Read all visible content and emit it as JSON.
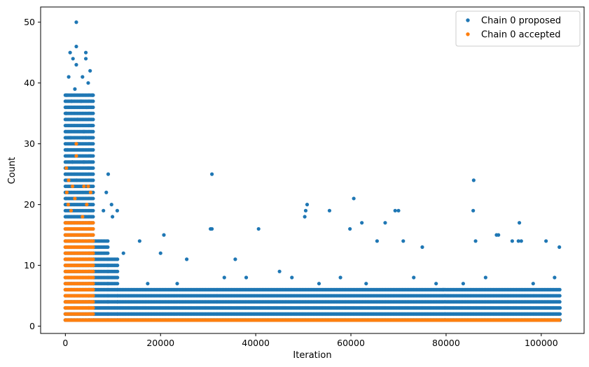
{
  "chart_data": {
    "type": "scatter",
    "title": "",
    "xlabel": "Iteration",
    "ylabel": "Count",
    "xlim": [
      -5200,
      109000
    ],
    "ylim": [
      -1.2,
      52.5
    ],
    "xticks": [
      0,
      20000,
      40000,
      60000,
      80000,
      100000
    ],
    "xtick_labels": [
      "0",
      "20000",
      "40000",
      "60000",
      "80000",
      "100000"
    ],
    "yticks": [
      0,
      10,
      20,
      30,
      40,
      50
    ],
    "ytick_labels": [
      "0",
      "10",
      "20",
      "30",
      "40",
      "50"
    ],
    "grid": false,
    "legend_position": "top-right",
    "series": [
      {
        "name": "Chain 0 proposed",
        "color": "#1f77b4",
        "marker": "circle",
        "points": [
          [
            2300,
            50
          ],
          [
            2300,
            46
          ],
          [
            1000,
            45
          ],
          [
            4300,
            45
          ],
          [
            1600,
            44
          ],
          [
            4300,
            44
          ],
          [
            2300,
            43
          ],
          [
            5200,
            42
          ],
          [
            700,
            41
          ],
          [
            3600,
            41
          ],
          [
            4800,
            40
          ],
          [
            2000,
            39
          ],
          [
            300,
            38
          ],
          [
            5700,
            38
          ],
          [
            1300,
            37
          ],
          [
            3300,
            37
          ],
          [
            4500,
            36
          ],
          [
            200,
            35
          ],
          [
            2600,
            34
          ],
          [
            5500,
            33
          ],
          [
            3900,
            32
          ],
          [
            1000,
            31
          ],
          [
            4300,
            31
          ],
          [
            2600,
            30
          ],
          [
            400,
            29
          ],
          [
            5300,
            28
          ],
          [
            1500,
            27
          ],
          [
            3900,
            27
          ],
          [
            200,
            26
          ],
          [
            4800,
            26
          ],
          [
            9000,
            25
          ],
          [
            30800,
            25
          ],
          [
            2300,
            24
          ],
          [
            85800,
            24
          ],
          [
            8600,
            22
          ],
          [
            200,
            21
          ],
          [
            60600,
            21
          ],
          [
            9700,
            20
          ],
          [
            50800,
            20
          ],
          [
            50500,
            19
          ],
          [
            55500,
            19
          ],
          [
            69300,
            19
          ],
          [
            70000,
            19
          ],
          [
            85700,
            19
          ],
          [
            8000,
            19
          ],
          [
            10900,
            19
          ],
          [
            9900,
            18
          ],
          [
            50300,
            18
          ],
          [
            62300,
            17
          ],
          [
            67200,
            17
          ],
          [
            95400,
            17
          ],
          [
            30500,
            16
          ],
          [
            30800,
            16
          ],
          [
            40600,
            16
          ],
          [
            59800,
            16
          ],
          [
            90600,
            15
          ],
          [
            91000,
            15
          ],
          [
            20700,
            15
          ],
          [
            65500,
            14
          ],
          [
            71000,
            14
          ],
          [
            86200,
            14
          ],
          [
            93900,
            14
          ],
          [
            95200,
            14
          ],
          [
            95800,
            14
          ],
          [
            101000,
            14
          ],
          [
            15600,
            14
          ],
          [
            75000,
            13
          ],
          [
            103800,
            13
          ],
          [
            20000,
            12
          ],
          [
            12200,
            12
          ],
          [
            25500,
            11
          ],
          [
            35700,
            11
          ],
          [
            45000,
            9
          ],
          [
            33400,
            8
          ],
          [
            77900,
            7
          ],
          [
            79400,
            6
          ],
          [
            17300,
            7
          ],
          [
            23500,
            7
          ],
          [
            38000,
            8
          ],
          [
            47600,
            8
          ],
          [
            53300,
            7
          ],
          [
            57800,
            8
          ],
          [
            63200,
            7
          ],
          [
            73200,
            8
          ],
          [
            83600,
            7
          ],
          [
            88300,
            8
          ],
          [
            98300,
            7
          ],
          [
            102800,
            8
          ]
        ],
        "dense_columns": [
          {
            "x": [
              0,
              6000
            ],
            "y_max": 38
          },
          {
            "x": [
              6000,
              9000
            ],
            "y_max": 14
          },
          {
            "x": [
              9000,
              11000
            ],
            "y_max": 11
          },
          {
            "x": [
              11000,
              32000
            ],
            "y_max": 6
          },
          {
            "x": [
              32000,
              104000
            ],
            "y_max": 6
          }
        ],
        "floor_y": [
          1,
          2,
          3
        ]
      },
      {
        "name": "Chain 0 accepted",
        "color": "#ff7f0e",
        "marker": "circle",
        "points": [
          [
            2300,
            30
          ],
          [
            2300,
            28
          ],
          [
            200,
            26
          ],
          [
            4800,
            23
          ],
          [
            700,
            24
          ],
          [
            1500,
            23
          ],
          [
            3900,
            23
          ],
          [
            300,
            22
          ],
          [
            5300,
            22
          ],
          [
            2000,
            21
          ],
          [
            600,
            20
          ],
          [
            4500,
            20
          ],
          [
            1200,
            19
          ],
          [
            3600,
            18
          ]
        ],
        "dense_columns": [
          {
            "x": [
              0,
              6000
            ],
            "y_max": 17
          }
        ],
        "floor_y": [
          1
        ],
        "floor_x": [
          6000,
          104000
        ]
      }
    ]
  }
}
